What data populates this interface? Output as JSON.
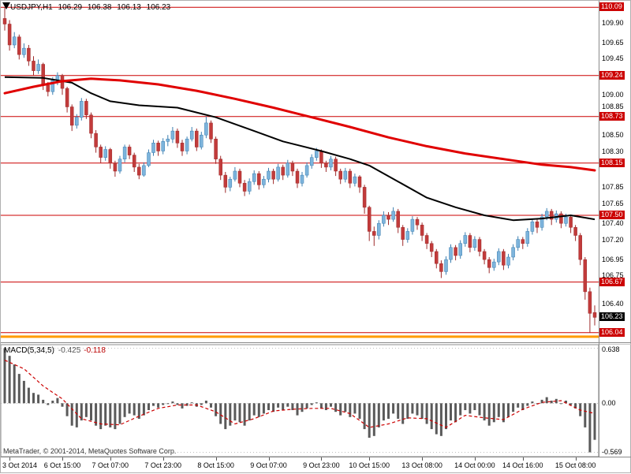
{
  "header": {
    "symbol": "USDJPY,H1",
    "open": "106.29",
    "high": "106.38",
    "low": "106.13",
    "close": "106.23"
  },
  "footer": {
    "copyright": "MetaTrader, © 2001-2014, MetaQuotes Software Corp."
  },
  "colors": {
    "up_fill": "#7db4dc",
    "up_stroke": "#3c7fb1",
    "down_fill": "#c23b3b",
    "down_stroke": "#9e2b2b",
    "level_line": "#cc0000",
    "level_badge": "#cc0000",
    "last_badge": "#000000",
    "gold_line": "#ff9a00",
    "ma_black": "#000000",
    "ma_red": "#e00000",
    "macd_bar": "#5a5a5a",
    "macd_signal": "#cc0000",
    "grid": "#999999"
  },
  "chart_data": [
    {
      "type": "candlestick",
      "title": "USDJPY,H1",
      "ylim": [
        105.93,
        110.17
      ],
      "levels": [
        110.09,
        109.24,
        108.73,
        108.15,
        107.5,
        106.67,
        106.04
      ],
      "gold_level": 105.99,
      "last_price": 106.23,
      "axis_ticks": [
        109.9,
        109.65,
        109.45,
        109.0,
        108.85,
        108.5,
        108.3,
        107.85,
        107.65,
        107.4,
        107.2,
        106.95,
        106.75,
        106.4
      ],
      "x_labels": [
        {
          "i": 1,
          "label": "3 Oct 2014"
        },
        {
          "i": 12,
          "label": "6 Oct 15:00"
        },
        {
          "i": 22,
          "label": "7 Oct 07:00"
        },
        {
          "i": 33,
          "label": "7 Oct 23:00"
        },
        {
          "i": 44,
          "label": "8 Oct 15:00"
        },
        {
          "i": 55,
          "label": "9 Oct 07:00"
        },
        {
          "i": 66,
          "label": "9 Oct 23:00"
        },
        {
          "i": 76,
          "label": "10 Oct 15:00"
        },
        {
          "i": 87,
          "label": "13 Oct 08:00"
        },
        {
          "i": 98,
          "label": "14 Oct 00:00"
        },
        {
          "i": 108,
          "label": "14 Oct 16:00"
        },
        {
          "i": 119,
          "label": "15 Oct 08:00"
        }
      ],
      "candles": [
        [
          109.95,
          110.09,
          109.8,
          109.88
        ],
        [
          109.88,
          109.93,
          109.55,
          109.62
        ],
        [
          109.62,
          109.78,
          109.58,
          109.72
        ],
        [
          109.72,
          109.75,
          109.44,
          109.5
        ],
        [
          109.5,
          109.64,
          109.46,
          109.58
        ],
        [
          109.58,
          109.62,
          109.36,
          109.42
        ],
        [
          109.42,
          109.48,
          109.24,
          109.3
        ],
        [
          109.3,
          109.44,
          109.26,
          109.38
        ],
        [
          109.38,
          109.4,
          109.06,
          109.12
        ],
        [
          109.12,
          109.16,
          108.98,
          109.04
        ],
        [
          109.04,
          109.22,
          109.0,
          109.18
        ],
        [
          109.18,
          109.28,
          109.12,
          109.24
        ],
        [
          109.24,
          109.26,
          109.0,
          109.08
        ],
        [
          109.08,
          109.1,
          108.78,
          108.85
        ],
        [
          108.85,
          108.88,
          108.55,
          108.62
        ],
        [
          108.62,
          108.76,
          108.58,
          108.72
        ],
        [
          108.72,
          108.96,
          108.68,
          108.92
        ],
        [
          108.92,
          108.95,
          108.7,
          108.75
        ],
        [
          108.75,
          108.78,
          108.46,
          108.52
        ],
        [
          108.52,
          108.56,
          108.28,
          108.35
        ],
        [
          108.35,
          108.38,
          108.15,
          108.22
        ],
        [
          108.22,
          108.36,
          108.18,
          108.32
        ],
        [
          108.32,
          108.34,
          108.08,
          108.15
        ],
        [
          108.15,
          108.18,
          107.98,
          108.05
        ],
        [
          108.05,
          108.24,
          108.02,
          108.2
        ],
        [
          108.2,
          108.38,
          108.16,
          108.35
        ],
        [
          108.35,
          108.38,
          108.2,
          108.25
        ],
        [
          108.25,
          108.28,
          108.04,
          108.1
        ],
        [
          108.1,
          108.14,
          107.95,
          108.0
        ],
        [
          108.0,
          108.16,
          107.98,
          108.12
        ],
        [
          108.12,
          108.32,
          108.1,
          108.28
        ],
        [
          108.28,
          108.44,
          108.24,
          108.4
        ],
        [
          108.4,
          108.43,
          108.24,
          108.3
        ],
        [
          108.3,
          108.46,
          108.26,
          108.42
        ],
        [
          108.42,
          108.5,
          108.36,
          108.45
        ],
        [
          108.45,
          108.6,
          108.4,
          108.55
        ],
        [
          108.55,
          108.58,
          108.34,
          108.4
        ],
        [
          108.4,
          108.44,
          108.24,
          108.3
        ],
        [
          108.3,
          108.48,
          108.26,
          108.45
        ],
        [
          108.45,
          108.6,
          108.42,
          108.55
        ],
        [
          108.55,
          108.58,
          108.3,
          108.35
        ],
        [
          108.35,
          108.54,
          108.32,
          108.5
        ],
        [
          108.5,
          108.73,
          108.46,
          108.65
        ],
        [
          108.65,
          108.68,
          108.4,
          108.45
        ],
        [
          108.45,
          108.48,
          108.14,
          108.2
        ],
        [
          108.2,
          108.24,
          107.94,
          108.0
        ],
        [
          108.0,
          108.04,
          107.78,
          107.85
        ],
        [
          107.85,
          107.98,
          107.8,
          107.95
        ],
        [
          107.95,
          108.1,
          107.92,
          108.05
        ],
        [
          108.05,
          108.08,
          107.85,
          107.9
        ],
        [
          107.9,
          107.94,
          107.74,
          107.8
        ],
        [
          107.8,
          107.96,
          107.76,
          107.92
        ],
        [
          107.92,
          108.06,
          107.88,
          108.02
        ],
        [
          108.02,
          108.05,
          107.82,
          107.88
        ],
        [
          107.88,
          107.99,
          107.84,
          107.95
        ],
        [
          107.95,
          108.09,
          107.91,
          108.05
        ],
        [
          108.05,
          108.08,
          107.89,
          107.95
        ],
        [
          107.95,
          108.14,
          107.92,
          108.1
        ],
        [
          108.1,
          108.13,
          107.94,
          108.0
        ],
        [
          108.0,
          108.19,
          107.97,
          108.15
        ],
        [
          108.15,
          108.18,
          107.99,
          108.05
        ],
        [
          108.05,
          108.08,
          107.84,
          107.9
        ],
        [
          107.9,
          108.04,
          107.86,
          108.0
        ],
        [
          108.0,
          108.16,
          107.97,
          108.12
        ],
        [
          108.12,
          108.26,
          108.08,
          108.22
        ],
        [
          108.22,
          108.34,
          108.18,
          108.3
        ],
        [
          108.3,
          108.32,
          108.09,
          108.15
        ],
        [
          108.15,
          108.18,
          108.04,
          108.1
        ],
        [
          108.1,
          108.24,
          108.06,
          108.2
        ],
        [
          108.2,
          108.23,
          107.99,
          108.05
        ],
        [
          108.05,
          108.08,
          107.89,
          107.95
        ],
        [
          107.95,
          108.09,
          107.91,
          108.05
        ],
        [
          108.05,
          108.08,
          107.84,
          107.9
        ],
        [
          107.9,
          108.02,
          107.86,
          107.98
        ],
        [
          107.98,
          108.0,
          107.78,
          107.85
        ],
        [
          107.85,
          107.88,
          107.52,
          107.6
        ],
        [
          107.6,
          107.62,
          107.18,
          107.3
        ],
        [
          107.3,
          107.36,
          107.12,
          107.25
        ],
        [
          107.25,
          107.44,
          107.2,
          107.4
        ],
        [
          107.4,
          107.55,
          107.36,
          107.5
        ],
        [
          107.5,
          107.54,
          107.38,
          107.45
        ],
        [
          107.45,
          107.6,
          107.42,
          107.55
        ],
        [
          107.55,
          107.58,
          107.28,
          107.35
        ],
        [
          107.35,
          107.38,
          107.12,
          107.2
        ],
        [
          107.2,
          107.34,
          107.16,
          107.3
        ],
        [
          107.3,
          107.49,
          107.26,
          107.45
        ],
        [
          107.45,
          107.48,
          107.32,
          107.38
        ],
        [
          107.38,
          107.41,
          107.18,
          107.25
        ],
        [
          107.25,
          107.28,
          107.08,
          107.15
        ],
        [
          107.15,
          107.18,
          106.98,
          107.05
        ],
        [
          107.05,
          107.08,
          106.84,
          106.9
        ],
        [
          106.9,
          106.94,
          106.72,
          106.8
        ],
        [
          106.8,
          106.99,
          106.76,
          106.95
        ],
        [
          106.95,
          107.14,
          106.91,
          107.1
        ],
        [
          107.1,
          107.13,
          106.94,
          107.0
        ],
        [
          107.0,
          107.19,
          106.96,
          107.15
        ],
        [
          107.15,
          107.29,
          107.11,
          107.25
        ],
        [
          107.25,
          107.28,
          107.04,
          107.1
        ],
        [
          107.1,
          107.24,
          107.06,
          107.2
        ],
        [
          107.2,
          107.23,
          106.99,
          107.05
        ],
        [
          107.05,
          107.08,
          106.89,
          106.95
        ],
        [
          106.95,
          106.98,
          106.78,
          106.85
        ],
        [
          106.85,
          106.96,
          106.81,
          106.92
        ],
        [
          106.92,
          107.09,
          106.88,
          107.05
        ],
        [
          107.05,
          107.08,
          106.82,
          106.88
        ],
        [
          106.88,
          107.02,
          106.84,
          106.98
        ],
        [
          106.98,
          107.14,
          106.94,
          107.1
        ],
        [
          107.1,
          107.24,
          107.06,
          107.2
        ],
        [
          107.2,
          107.23,
          107.08,
          107.15
        ],
        [
          107.15,
          107.34,
          107.11,
          107.3
        ],
        [
          107.3,
          107.46,
          107.26,
          107.42
        ],
        [
          107.42,
          107.45,
          107.28,
          107.35
        ],
        [
          107.35,
          107.52,
          107.31,
          107.48
        ],
        [
          107.48,
          107.59,
          107.44,
          107.55
        ],
        [
          107.55,
          107.58,
          107.38,
          107.45
        ],
        [
          107.45,
          107.56,
          107.41,
          107.52
        ],
        [
          107.52,
          107.55,
          107.34,
          107.4
        ],
        [
          107.4,
          107.52,
          107.36,
          107.48
        ],
        [
          107.48,
          107.51,
          107.28,
          107.35
        ],
        [
          107.35,
          107.38,
          107.18,
          107.25
        ],
        [
          107.25,
          107.28,
          106.88,
          106.95
        ],
        [
          106.95,
          106.98,
          106.45,
          106.55
        ],
        [
          106.55,
          106.6,
          106.04,
          106.28
        ],
        [
          106.29,
          106.38,
          106.13,
          106.23
        ]
      ],
      "ma_black_anchors": [
        [
          0,
          109.22
        ],
        [
          8,
          109.21
        ],
        [
          14,
          109.15
        ],
        [
          18,
          109.02
        ],
        [
          22,
          108.92
        ],
        [
          28,
          108.87
        ],
        [
          36,
          108.84
        ],
        [
          44,
          108.72
        ],
        [
          52,
          108.55
        ],
        [
          58,
          108.42
        ],
        [
          66,
          108.3
        ],
        [
          72,
          108.2
        ],
        [
          76,
          108.12
        ],
        [
          82,
          107.92
        ],
        [
          88,
          107.72
        ],
        [
          94,
          107.6
        ],
        [
          100,
          107.5
        ],
        [
          106,
          107.44
        ],
        [
          112,
          107.46
        ],
        [
          118,
          107.5
        ],
        [
          123,
          107.45
        ]
      ],
      "ma_red_anchors": [
        [
          0,
          109.02
        ],
        [
          6,
          109.1
        ],
        [
          12,
          109.17
        ],
        [
          18,
          109.2
        ],
        [
          24,
          109.18
        ],
        [
          32,
          109.13
        ],
        [
          40,
          109.05
        ],
        [
          48,
          108.95
        ],
        [
          56,
          108.84
        ],
        [
          64,
          108.72
        ],
        [
          72,
          108.6
        ],
        [
          80,
          108.47
        ],
        [
          88,
          108.36
        ],
        [
          96,
          108.27
        ],
        [
          104,
          108.2
        ],
        [
          112,
          108.13
        ],
        [
          118,
          108.1
        ],
        [
          123,
          108.06
        ]
      ]
    },
    {
      "type": "bar",
      "label": "MACD(5,34,5)",
      "value": "-0.425",
      "signal": "-0.118",
      "ylim": [
        -0.62,
        0.68
      ],
      "axis_ticks": [
        {
          "label": "0.638",
          "v": 0.638
        },
        {
          "label": "0.00",
          "v": 0
        },
        {
          "label": "-0.569",
          "v": -0.569
        }
      ],
      "values": [
        0.638,
        0.55,
        0.45,
        0.34,
        0.26,
        0.18,
        0.12,
        0.1,
        0.04,
        -0.02,
        0.03,
        0.06,
        -0.04,
        -0.15,
        -0.26,
        -0.28,
        -0.2,
        -0.16,
        -0.2,
        -0.26,
        -0.3,
        -0.26,
        -0.28,
        -0.3,
        -0.24,
        -0.16,
        -0.12,
        -0.14,
        -0.18,
        -0.14,
        -0.08,
        -0.03,
        -0.05,
        -0.02,
        0.0,
        0.02,
        -0.02,
        -0.06,
        -0.03,
        0.01,
        -0.04,
        -0.02,
        0.03,
        -0.05,
        -0.15,
        -0.24,
        -0.3,
        -0.26,
        -0.2,
        -0.22,
        -0.26,
        -0.2,
        -0.14,
        -0.16,
        -0.12,
        -0.08,
        -0.1,
        -0.05,
        -0.08,
        -0.04,
        -0.08,
        -0.14,
        -0.1,
        -0.06,
        -0.02,
        0.01,
        -0.06,
        -0.08,
        -0.04,
        -0.1,
        -0.14,
        -0.1,
        -0.16,
        -0.12,
        -0.18,
        -0.3,
        -0.4,
        -0.38,
        -0.28,
        -0.2,
        -0.18,
        -0.12,
        -0.18,
        -0.24,
        -0.18,
        -0.12,
        -0.14,
        -0.18,
        -0.24,
        -0.3,
        -0.36,
        -0.38,
        -0.3,
        -0.2,
        -0.22,
        -0.14,
        -0.08,
        -0.12,
        -0.08,
        -0.14,
        -0.2,
        -0.26,
        -0.22,
        -0.16,
        -0.22,
        -0.16,
        -0.1,
        -0.05,
        -0.08,
        -0.03,
        0.02,
        -0.01,
        0.04,
        0.07,
        0.03,
        0.05,
        0.0,
        0.03,
        -0.02,
        -0.06,
        -0.15,
        -0.28,
        -0.569,
        -0.425
      ],
      "signal_anchors": [
        [
          0,
          0.5
        ],
        [
          4,
          0.4
        ],
        [
          8,
          0.2
        ],
        [
          12,
          0.05
        ],
        [
          16,
          -0.18
        ],
        [
          20,
          -0.24
        ],
        [
          24,
          -0.25
        ],
        [
          28,
          -0.15
        ],
        [
          32,
          -0.06
        ],
        [
          36,
          -0.02
        ],
        [
          40,
          -0.02
        ],
        [
          44,
          -0.1
        ],
        [
          48,
          -0.24
        ],
        [
          52,
          -0.18
        ],
        [
          56,
          -0.09
        ],
        [
          60,
          -0.07
        ],
        [
          64,
          -0.06
        ],
        [
          68,
          -0.06
        ],
        [
          72,
          -0.12
        ],
        [
          76,
          -0.28
        ],
        [
          80,
          -0.24
        ],
        [
          84,
          -0.17
        ],
        [
          88,
          -0.18
        ],
        [
          92,
          -0.28
        ],
        [
          96,
          -0.14
        ],
        [
          100,
          -0.17
        ],
        [
          104,
          -0.19
        ],
        [
          108,
          -0.07
        ],
        [
          112,
          0.01
        ],
        [
          116,
          0.03
        ],
        [
          120,
          -0.08
        ],
        [
          123,
          -0.118
        ]
      ]
    }
  ]
}
